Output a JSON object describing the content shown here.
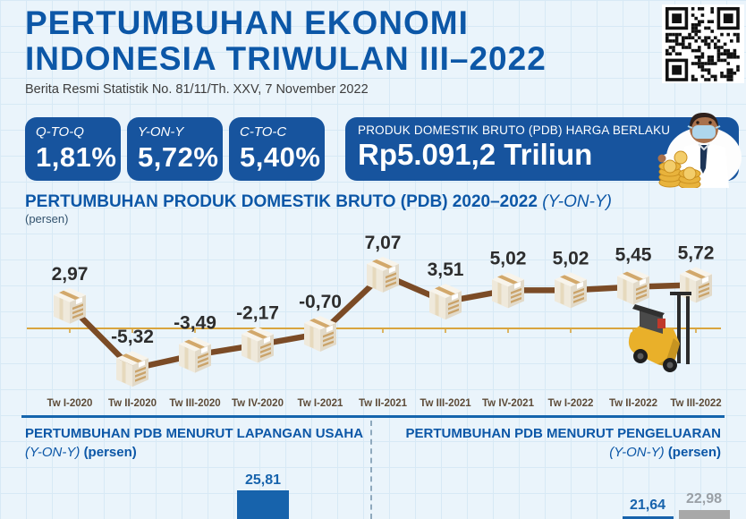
{
  "header": {
    "title_line1": "PERTUMBUHAN EKONOMI",
    "title_line2": "INDONESIA TRIWULAN III–2022",
    "subtitle": "Berita Resmi Statistik No. 81/11/Th. XXV, 7 November 2022"
  },
  "stats": [
    {
      "label": "Q-TO-Q",
      "value": "1,81%"
    },
    {
      "label": "Y-ON-Y",
      "value": "5,72%"
    },
    {
      "label": "C-TO-C",
      "value": "5,40%"
    }
  ],
  "pdb_box": {
    "label": "PRODUK DOMESTIK BRUTO (PDB) HARGA BERLAKU",
    "value": "Rp5.091,2 Triliun"
  },
  "chart_section": {
    "title": "PERTUMBUHAN PRODUK DOMESTIK BRUTO (PDB) 2020–2022",
    "title_suffix": "(Y-ON-Y)",
    "unit": "(persen)"
  },
  "chart_data": [
    {
      "id": "pdb-growth-line",
      "type": "line",
      "title": "PERTUMBUHAN PRODUK DOMESTIK BRUTO (PDB) 2020–2022 (Y-ON-Y)",
      "ylabel": "persen",
      "categories": [
        "Tw I-2020",
        "Tw II-2020",
        "Tw III-2020",
        "Tw IV-2020",
        "Tw I-2021",
        "Tw II-2021",
        "Tw III-2021",
        "Tw IV-2021",
        "Tw I-2022",
        "Tw II-2022",
        "Tw III-2022"
      ],
      "values": [
        2.97,
        -5.32,
        -3.49,
        -2.17,
        -0.7,
        7.07,
        3.51,
        5.02,
        5.02,
        5.45,
        5.72
      ],
      "labels": [
        "2,97",
        "-5,32",
        "-3,49",
        "-2,17",
        "-0,70",
        "7,07",
        "3,51",
        "5,02",
        "5,02",
        "5,45",
        "5,72"
      ],
      "marker": "cardboard-box-icon",
      "zero_line": true,
      "ylim": [
        -7,
        9
      ],
      "grid": true,
      "legend": "none"
    },
    {
      "id": "lapangan-usaha-bars",
      "type": "bar",
      "title": "PERTUMBUHAN PDB MENURUT LAPANGAN USAHA (Y-ON-Y) (persen)",
      "bars": [
        {
          "label": "25,81",
          "value": 25.81,
          "color": "blue"
        }
      ]
    },
    {
      "id": "pengeluaran-bars",
      "type": "bar",
      "title": "PERTUMBUHAN PDB MENURUT PENGELUARAN (Y-ON-Y) (persen)",
      "bars": [
        {
          "label": "21,64",
          "value": 21.64,
          "color": "blue"
        },
        {
          "label": "22,98",
          "value": 22.98,
          "color": "gray"
        }
      ]
    }
  ],
  "bottom_left": {
    "title": "PERTUMBUHAN PDB MENURUT LAPANGAN USAHA",
    "subtitle_italic": "(Y-ON-Y)",
    "subtitle_bold": "(persen)"
  },
  "bottom_right": {
    "title": "PERTUMBUHAN PDB MENURUT PENGELUARAN",
    "subtitle_italic": "(Y-ON-Y)",
    "subtitle_bold": "(persen)"
  },
  "colors": {
    "accent_blue": "#0c57a7",
    "card_blue": "#17549e",
    "bar_blue": "#1763ac",
    "bar_gray": "#a8a8a8",
    "bar_gray_label": "#9aa0a6",
    "line_brown": "#7b4b26",
    "zero_line_gold": "#d9a53e",
    "data_label": "#2d2d2d",
    "x_label": "#5d4b38"
  }
}
